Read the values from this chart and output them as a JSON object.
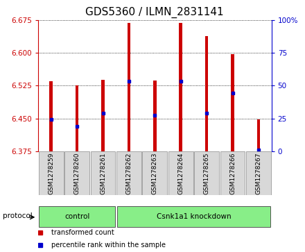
{
  "title": "GDS5360 / ILMN_2831141",
  "samples": [
    "GSM1278259",
    "GSM1278260",
    "GSM1278261",
    "GSM1278262",
    "GSM1278263",
    "GSM1278264",
    "GSM1278265",
    "GSM1278266",
    "GSM1278267"
  ],
  "bar_bottom": 6.375,
  "bar_tops": [
    6.535,
    6.525,
    6.538,
    6.668,
    6.537,
    6.668,
    6.638,
    6.597,
    6.447
  ],
  "percentile_values": [
    6.448,
    6.432,
    6.462,
    6.535,
    6.458,
    6.535,
    6.462,
    6.508,
    6.378
  ],
  "ylim_left": [
    6.375,
    6.675
  ],
  "ylim_right": [
    0,
    100
  ],
  "yticks_left": [
    6.375,
    6.45,
    6.525,
    6.6,
    6.675
  ],
  "yticks_right": [
    0,
    25,
    50,
    75,
    100
  ],
  "bar_color": "#cc0000",
  "blue_color": "#0000cc",
  "bar_width": 0.12,
  "protocol_groups": [
    {
      "label": "control",
      "start": 0,
      "end": 3
    },
    {
      "label": "Csnk1a1 knockdown",
      "start": 3,
      "end": 9
    }
  ],
  "protocol_label": "protocol",
  "legend_items": [
    {
      "label": "transformed count",
      "color": "#cc0000"
    },
    {
      "label": "percentile rank within the sample",
      "color": "#0000cc"
    }
  ],
  "background_color": "#ffffff",
  "tick_color_left": "#cc0000",
  "tick_color_right": "#0000cc",
  "title_fontsize": 11,
  "tick_label_fontsize": 7.5,
  "sample_box_color": "#d8d8d8",
  "protocol_box_color": "#88ee88",
  "right_tick_label": [
    "0",
    "25",
    "50",
    "75",
    "100%"
  ]
}
